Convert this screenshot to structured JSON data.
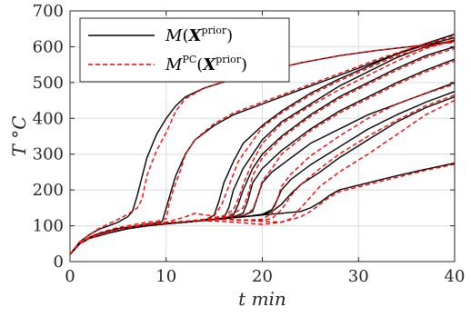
{
  "chart_data": {
    "type": "line",
    "xlabel": "t min",
    "ylabel": "T °C",
    "xlim": [
      0,
      40
    ],
    "ylim": [
      0,
      700
    ],
    "x_ticks": [
      "0",
      "10",
      "20",
      "30",
      "40"
    ],
    "y_ticks": [
      "0",
      "100",
      "200",
      "300",
      "400",
      "500",
      "600",
      "700"
    ],
    "grid": true,
    "legend_position": "top-left",
    "legend": [
      {
        "label": "M(X^prior)",
        "color": "#000000",
        "style": "solid"
      },
      {
        "label": "M^PC(X^prior)",
        "color": "#ff0000",
        "style": "dashed"
      }
    ],
    "series": [
      {
        "group": "model",
        "color": "#000000",
        "x": [
          0,
          1,
          2,
          3,
          4,
          5,
          6,
          6.5,
          7,
          8,
          9,
          10,
          11,
          12,
          14,
          17,
          20,
          24,
          28,
          32,
          36,
          40
        ],
        "y": [
          20,
          55,
          75,
          90,
          100,
          110,
          125,
          140,
          185,
          290,
          355,
          400,
          435,
          460,
          485,
          510,
          530,
          555,
          575,
          590,
          602,
          615
        ]
      },
      {
        "group": "model",
        "color": "#000000",
        "x": [
          0,
          1,
          2,
          3,
          5,
          7,
          8,
          9,
          9.6,
          10,
          10.5,
          11,
          12,
          13,
          15,
          17,
          20,
          24,
          28,
          32,
          36,
          40
        ],
        "y": [
          20,
          50,
          68,
          78,
          92,
          100,
          105,
          108,
          112,
          150,
          195,
          240,
          300,
          340,
          380,
          410,
          440,
          480,
          520,
          560,
          600,
          635
        ]
      },
      {
        "group": "model",
        "color": "#000000",
        "x": [
          0,
          1,
          2,
          4,
          6,
          8,
          10,
          12,
          14,
          15,
          15.5,
          16,
          17,
          18,
          20,
          22,
          25,
          28,
          31,
          34,
          37,
          40
        ],
        "y": [
          20,
          50,
          65,
          80,
          92,
          100,
          105,
          110,
          115,
          130,
          170,
          220,
          280,
          330,
          380,
          420,
          470,
          510,
          545,
          580,
          605,
          625
        ]
      },
      {
        "group": "model",
        "color": "#000000",
        "x": [
          0,
          1,
          2,
          4,
          6,
          8,
          10,
          12,
          14,
          16,
          16.5,
          17,
          18,
          19,
          20,
          22,
          25,
          28,
          31,
          34,
          37,
          40
        ],
        "y": [
          20,
          50,
          65,
          80,
          92,
          100,
          106,
          110,
          115,
          122,
          150,
          200,
          260,
          300,
          340,
          390,
          440,
          490,
          530,
          570,
          600,
          618
        ]
      },
      {
        "group": "model",
        "color": "#000000",
        "x": [
          0,
          1,
          2,
          4,
          6,
          8,
          10,
          12,
          14,
          16,
          17,
          17.5,
          18,
          19,
          20,
          22,
          25,
          28,
          31,
          34,
          37,
          40
        ],
        "y": [
          20,
          50,
          65,
          80,
          92,
          100,
          106,
          110,
          115,
          120,
          130,
          160,
          200,
          260,
          300,
          350,
          410,
          460,
          500,
          540,
          575,
          600
        ]
      },
      {
        "group": "model",
        "color": "#000000",
        "x": [
          0,
          1,
          2,
          4,
          6,
          8,
          10,
          12,
          14,
          16,
          17,
          18,
          18.5,
          19,
          20,
          22,
          25,
          28,
          31,
          34,
          37,
          40
        ],
        "y": [
          20,
          50,
          65,
          80,
          92,
          100,
          106,
          110,
          115,
          120,
          125,
          135,
          170,
          220,
          260,
          310,
          370,
          420,
          460,
          500,
          535,
          565
        ]
      },
      {
        "group": "model",
        "color": "#000000",
        "x": [
          0,
          1,
          2,
          4,
          6,
          8,
          10,
          12,
          14,
          16,
          18,
          19,
          19.5,
          20,
          21,
          23,
          25,
          28,
          31,
          34,
          37,
          40
        ],
        "y": [
          20,
          50,
          65,
          80,
          92,
          100,
          106,
          110,
          115,
          120,
          128,
          140,
          180,
          220,
          250,
          290,
          330,
          370,
          410,
          440,
          470,
          500
        ]
      },
      {
        "group": "model",
        "color": "#000000",
        "x": [
          0,
          1,
          2,
          4,
          6,
          8,
          10,
          12,
          14,
          16,
          18,
          20,
          21,
          21.5,
          22,
          23,
          25,
          28,
          31,
          34,
          37,
          40
        ],
        "y": [
          20,
          50,
          65,
          80,
          92,
          100,
          106,
          110,
          115,
          120,
          125,
          132,
          145,
          170,
          200,
          230,
          270,
          320,
          370,
          410,
          445,
          475
        ]
      },
      {
        "group": "model",
        "color": "#000000",
        "x": [
          0,
          1,
          2,
          4,
          6,
          8,
          10,
          12,
          14,
          16,
          18,
          20,
          21,
          22,
          23,
          24,
          26,
          28,
          31,
          34,
          37,
          40
        ],
        "y": [
          20,
          50,
          65,
          80,
          92,
          100,
          106,
          110,
          115,
          120,
          125,
          130,
          140,
          160,
          190,
          215,
          250,
          290,
          340,
          390,
          430,
          460
        ]
      },
      {
        "group": "model",
        "color": "#000000",
        "x": [
          0,
          1,
          2,
          4,
          6,
          8,
          10,
          12,
          14,
          16,
          18,
          20,
          22,
          24,
          25,
          26,
          27,
          28,
          31,
          34,
          37,
          40
        ],
        "y": [
          20,
          50,
          65,
          80,
          92,
          100,
          106,
          110,
          115,
          120,
          125,
          130,
          135,
          140,
          150,
          165,
          185,
          200,
          220,
          240,
          258,
          275
        ]
      },
      {
        "group": "pc",
        "color": "#ff0000",
        "x": [
          0,
          1,
          2,
          3,
          4,
          5,
          6,
          7,
          7.5,
          8,
          9,
          10,
          11,
          12,
          14,
          17,
          20,
          24,
          28,
          32,
          36,
          40
        ],
        "y": [
          20,
          55,
          75,
          92,
          105,
          118,
          132,
          150,
          175,
          240,
          310,
          360,
          420,
          455,
          485,
          510,
          530,
          555,
          575,
          590,
          602,
          612
        ]
      },
      {
        "group": "pc",
        "color": "#ff0000",
        "x": [
          0,
          1,
          2,
          3,
          5,
          7,
          8,
          9,
          10,
          10.3,
          10.8,
          11.5,
          12,
          13,
          15,
          17,
          20,
          24,
          28,
          32,
          36,
          40
        ],
        "y": [
          20,
          50,
          68,
          80,
          95,
          105,
          110,
          112,
          120,
          160,
          205,
          255,
          300,
          340,
          385,
          415,
          445,
          485,
          525,
          565,
          600,
          630
        ]
      },
      {
        "group": "pc",
        "color": "#ff0000",
        "x": [
          0,
          1,
          2,
          4,
          6,
          8,
          10,
          12,
          13,
          14,
          15,
          15.8,
          16.5,
          17.5,
          20,
          22,
          25,
          28,
          31,
          34,
          37,
          40
        ],
        "y": [
          20,
          50,
          65,
          82,
          95,
          105,
          110,
          125,
          135,
          130,
          128,
          160,
          210,
          280,
          375,
          415,
          465,
          505,
          540,
          575,
          598,
          615
        ]
      },
      {
        "group": "pc",
        "color": "#ff0000",
        "x": [
          0,
          1,
          2,
          4,
          6,
          8,
          10,
          12,
          14,
          16,
          17,
          17.5,
          18,
          19,
          20,
          22,
          25,
          28,
          31,
          34,
          37,
          40
        ],
        "y": [
          20,
          50,
          65,
          82,
          95,
          103,
          108,
          112,
          118,
          128,
          145,
          175,
          215,
          280,
          330,
          385,
          435,
          480,
          520,
          560,
          595,
          620
        ]
      },
      {
        "group": "pc",
        "color": "#ff0000",
        "x": [
          0,
          1,
          2,
          4,
          6,
          8,
          10,
          12,
          14,
          16,
          17,
          18,
          18.5,
          19,
          20,
          22,
          25,
          28,
          31,
          34,
          37,
          40
        ],
        "y": [
          20,
          50,
          65,
          82,
          95,
          103,
          108,
          112,
          118,
          125,
          135,
          150,
          185,
          240,
          290,
          345,
          405,
          455,
          495,
          535,
          570,
          595
        ]
      },
      {
        "group": "pc",
        "color": "#ff0000",
        "x": [
          0,
          1,
          2,
          4,
          6,
          8,
          10,
          12,
          14,
          16,
          18,
          19,
          19.5,
          20,
          21,
          22,
          25,
          28,
          31,
          34,
          37,
          40
        ],
        "y": [
          20,
          50,
          65,
          82,
          95,
          103,
          108,
          112,
          118,
          124,
          128,
          145,
          180,
          225,
          260,
          300,
          365,
          415,
          455,
          495,
          530,
          560
        ]
      },
      {
        "group": "pc",
        "color": "#ff0000",
        "x": [
          0,
          1,
          2,
          4,
          6,
          8,
          10,
          12,
          14,
          16,
          18,
          20,
          21,
          21.5,
          22,
          23,
          25,
          28,
          31,
          34,
          37,
          40
        ],
        "y": [
          20,
          50,
          65,
          82,
          95,
          103,
          108,
          112,
          116,
          118,
          115,
          118,
          135,
          170,
          210,
          245,
          295,
          350,
          400,
          440,
          470,
          495
        ]
      },
      {
        "group": "pc",
        "color": "#ff0000",
        "x": [
          0,
          1,
          2,
          4,
          6,
          8,
          10,
          12,
          14,
          16,
          18,
          20,
          21,
          22,
          23,
          24,
          26,
          28,
          31,
          34,
          37,
          40
        ],
        "y": [
          20,
          50,
          65,
          82,
          95,
          103,
          108,
          112,
          116,
          118,
          116,
          115,
          120,
          145,
          185,
          215,
          260,
          300,
          350,
          395,
          435,
          465
        ]
      },
      {
        "group": "pc",
        "color": "#ff0000",
        "x": [
          0,
          1,
          2,
          4,
          6,
          8,
          10,
          12,
          14,
          16,
          18,
          20,
          22,
          23,
          24,
          25,
          26,
          28,
          31,
          34,
          37,
          40
        ],
        "y": [
          20,
          50,
          65,
          82,
          95,
          103,
          108,
          112,
          116,
          118,
          116,
          112,
          110,
          120,
          150,
          180,
          210,
          250,
          300,
          355,
          410,
          450
        ]
      },
      {
        "group": "pc",
        "color": "#ff0000",
        "x": [
          0,
          1,
          2,
          4,
          6,
          8,
          10,
          12,
          14,
          16,
          18,
          20,
          22,
          24,
          25,
          26,
          27,
          28,
          31,
          34,
          37,
          40
        ],
        "y": [
          20,
          50,
          65,
          82,
          95,
          103,
          108,
          112,
          114,
          112,
          108,
          104,
          110,
          125,
          140,
          160,
          180,
          195,
          215,
          235,
          255,
          272
        ]
      }
    ]
  }
}
